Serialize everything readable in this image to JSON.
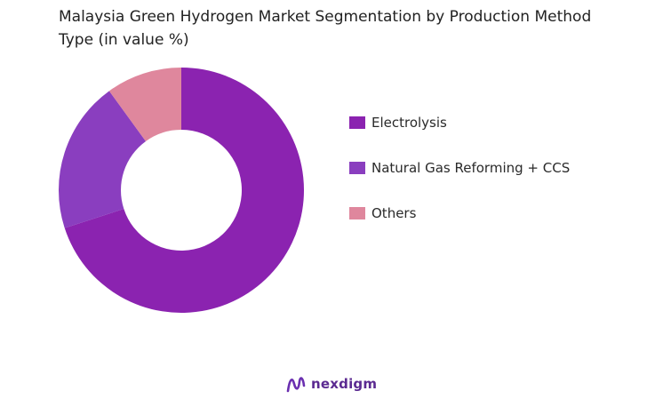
{
  "chart_data": {
    "type": "pie",
    "title": "Malaysia Green Hydrogen Market Segmentation by Production Method Type (in value %)",
    "categories": [
      "Electrolysis",
      "Natural Gas Reforming + CCS",
      "Others"
    ],
    "values": [
      70,
      20,
      10
    ],
    "colors": [
      "#8b23b0",
      "#8a3ebf",
      "#df879d"
    ],
    "legend_position": "right",
    "style": "donut"
  },
  "brand": {
    "name": "nexdigm",
    "icon": "nexdigm-logo-icon",
    "color": "#5b2a91"
  }
}
